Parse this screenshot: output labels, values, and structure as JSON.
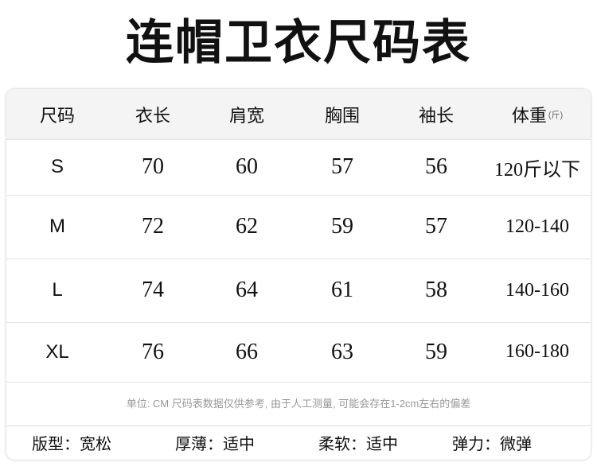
{
  "title": "连帽卫衣尺码表",
  "table": {
    "headers": [
      "尺码",
      "衣长",
      "肩宽",
      "胸围",
      "袖长",
      "体重"
    ],
    "weight_unit": "(斤)",
    "rows": [
      [
        "S",
        "70",
        "60",
        "57",
        "56",
        "120斤以下"
      ],
      [
        "M",
        "72",
        "62",
        "59",
        "57",
        "120-140"
      ],
      [
        "L",
        "74",
        "64",
        "61",
        "58",
        "140-160"
      ],
      [
        "XL",
        "76",
        "66",
        "63",
        "59",
        "160-180"
      ]
    ]
  },
  "note": "单位: CM 尺码表数据仅供参考, 由于人工测量, 可能会存在1-2cm左右的偏差",
  "attributes": [
    "版型：宽松",
    "厚薄：适中",
    "柔软：适中",
    "弹力：微弹"
  ]
}
